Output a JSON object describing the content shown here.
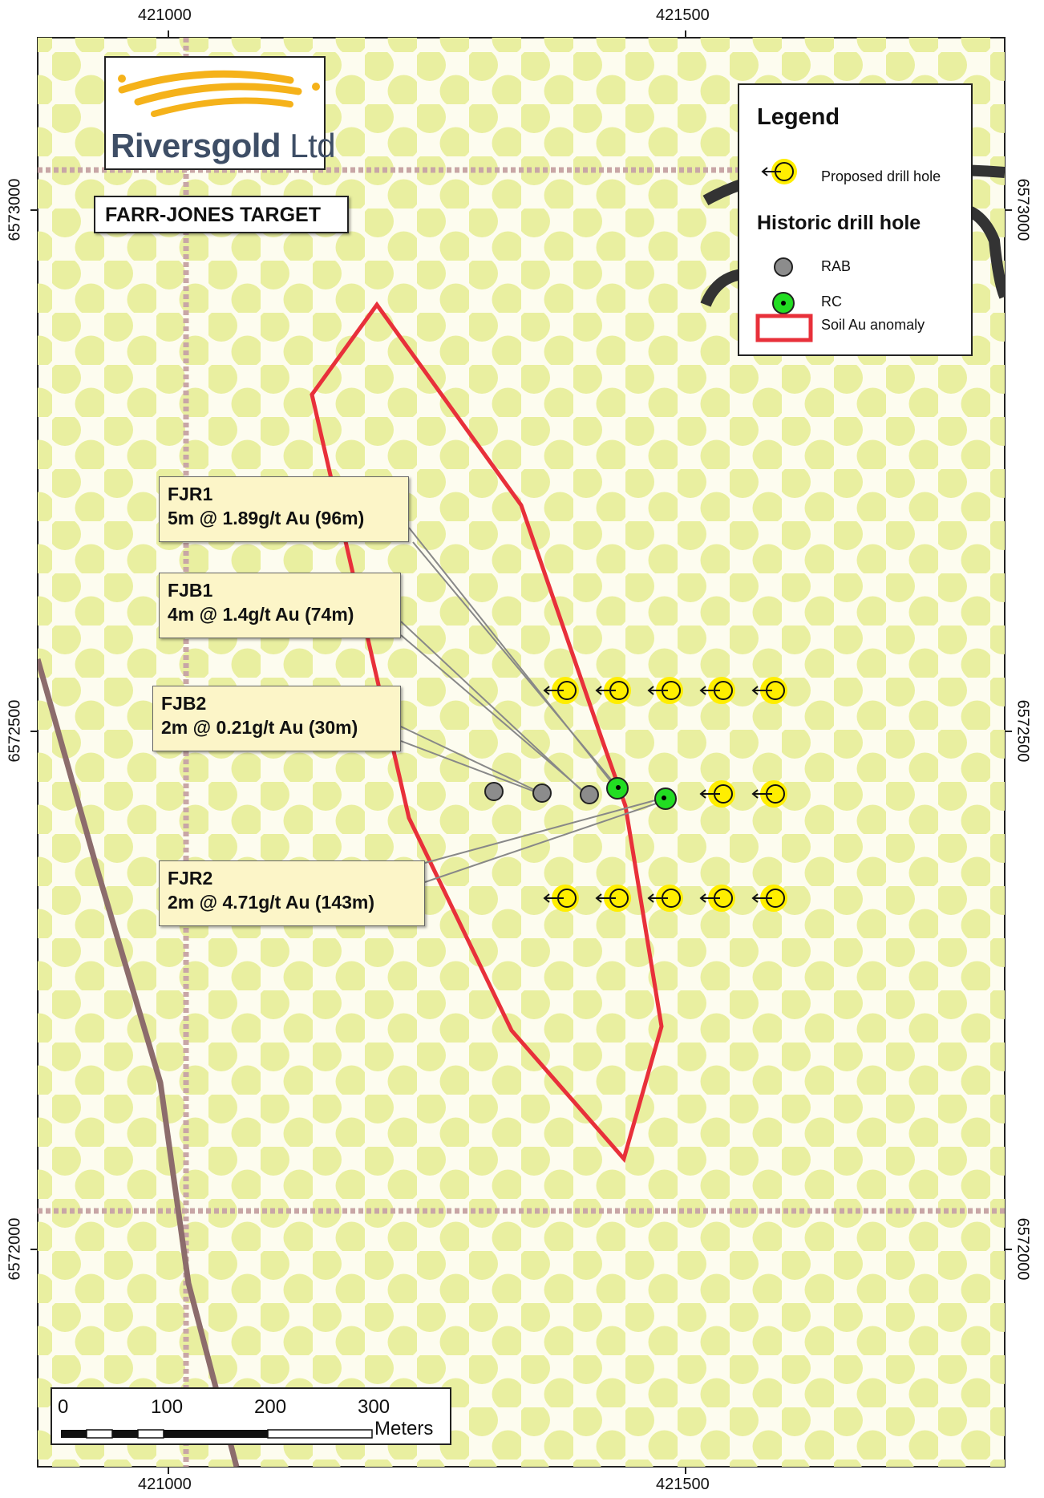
{
  "logo": {
    "name": "Riversgold",
    "suffix": " Ltd",
    "swoosh_color": "#f5b21a",
    "text_color": "#3e4e66"
  },
  "target_label": "FARR-JONES TARGET",
  "legend": {
    "title": "Legend",
    "proposed_label": "Proposed drill hole",
    "historic_title": "Historic drill hole",
    "rab_label": "RAB",
    "rc_label": "RC",
    "anomaly_label": "Soil Au anomaly"
  },
  "callouts": [
    {
      "id": "FJR1",
      "line1": "FJR1",
      "line2": "5m @ 1.89g/t Au (96m)"
    },
    {
      "id": "FJB1",
      "line1": "FJB1",
      "line2": "4m @ 1.4g/t Au (74m)"
    },
    {
      "id": "FJB2",
      "line1": "FJB2",
      "line2": "2m @ 0.21g/t Au (30m)"
    },
    {
      "id": "FJR2",
      "line1": "FJR2",
      "line2": "2m @ 4.71g/t Au (143m)"
    }
  ],
  "axes": {
    "x_ticks": [
      "421000",
      "421500"
    ],
    "y_ticks": [
      "6573000",
      "6572500",
      "6572000"
    ]
  },
  "scale_bar": {
    "labels": [
      "0",
      "100",
      "200",
      "300"
    ],
    "unit": "Meters"
  },
  "colors": {
    "map_background": "#fdfcef",
    "soil_dots": "#e9efa0",
    "anomaly_outline": "#e8303a",
    "proposed_hole": "#ffee00",
    "rab_hole": "#8c8c8c",
    "rc_hole": "#22dd22",
    "callout_fill": "#fcf5c8"
  }
}
